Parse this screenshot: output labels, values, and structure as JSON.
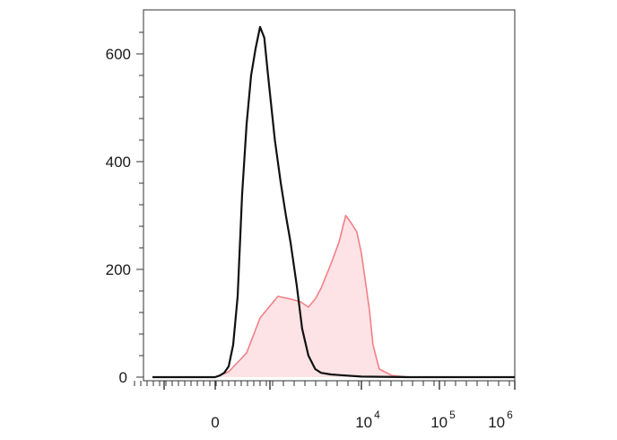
{
  "chart_data": {
    "type": "area",
    "title": "",
    "xlabel": "",
    "ylabel": "",
    "x_scale": "biexponential",
    "xlim": [
      -1000,
      1000000
    ],
    "ylim": [
      0,
      660
    ],
    "y_ticks": [
      {
        "value": 0,
        "label": "0"
      },
      {
        "value": 200,
        "label": "200"
      },
      {
        "value": 400,
        "label": "400"
      },
      {
        "value": 600,
        "label": "600"
      }
    ],
    "x_ticks": [
      {
        "value": 0,
        "label": "0",
        "base": "",
        "exp": ""
      },
      {
        "value": 10000,
        "label": "10^4",
        "base": "10",
        "exp": "4"
      },
      {
        "value": 100000,
        "label": "10^5",
        "base": "10",
        "exp": "5"
      },
      {
        "value": 1000000,
        "label": "10^6",
        "base": "10",
        "exp": "6"
      }
    ],
    "series": [
      {
        "role": "stained",
        "color": "#f08088",
        "fill": "#fde3e5",
        "x": [
          -1000,
          0,
          300,
          700,
          1000,
          1500,
          2000,
          2500,
          3000,
          3500,
          4000,
          5000,
          6000,
          7000,
          8000,
          9000,
          10000,
          11000,
          12000,
          13000,
          15000,
          20000,
          30000,
          1000000
        ],
        "y": [
          0,
          0,
          10,
          45,
          110,
          150,
          145,
          140,
          130,
          145,
          165,
          210,
          250,
          300,
          285,
          270,
          230,
          175,
          125,
          60,
          15,
          3,
          0,
          0
        ]
      },
      {
        "role": "control",
        "color": "#111111",
        "fill": "none",
        "x": [
          -1000,
          0,
          100,
          200,
          300,
          400,
          500,
          600,
          700,
          800,
          900,
          1000,
          1100,
          1200,
          1400,
          1600,
          1800,
          2000,
          2300,
          2600,
          3000,
          3500,
          4000,
          5000,
          7000,
          10000,
          30000,
          1000000
        ],
        "y": [
          0,
          0,
          3,
          8,
          20,
          60,
          150,
          340,
          470,
          560,
          610,
          650,
          630,
          560,
          440,
          360,
          300,
          250,
          170,
          90,
          40,
          15,
          8,
          5,
          3,
          1,
          0,
          0
        ]
      }
    ],
    "grid": false,
    "legend": "none"
  }
}
